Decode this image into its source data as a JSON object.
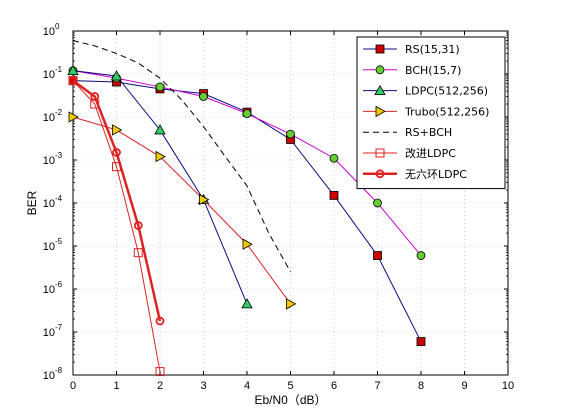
{
  "chart_data": {
    "type": "line",
    "xlabel": "Eb/N0（dB）",
    "ylabel": "BER",
    "xlim": [
      0,
      10
    ],
    "ylim_log10": [
      -8,
      0
    ],
    "yscale": "log",
    "grid": true,
    "legend_position": "top-right",
    "x_ticks": [
      "0",
      "1",
      "2",
      "3",
      "4",
      "5",
      "6",
      "7",
      "8",
      "9",
      "10"
    ],
    "y_ticks": [
      {
        "base": "10",
        "exp": "0"
      },
      {
        "base": "10",
        "exp": "-1"
      },
      {
        "base": "10",
        "exp": "-2"
      },
      {
        "base": "10",
        "exp": "-3"
      },
      {
        "base": "10",
        "exp": "-4"
      },
      {
        "base": "10",
        "exp": "-5"
      },
      {
        "base": "10",
        "exp": "-6"
      },
      {
        "base": "10",
        "exp": "-7"
      },
      {
        "base": "10",
        "exp": "-8"
      }
    ],
    "series": [
      {
        "name": "RS(15,31)",
        "color": "#0a0a80",
        "marker": "square",
        "marker_fill": "#cc0000",
        "dash": false,
        "width": 1,
        "x": [
          0,
          1,
          2,
          3,
          4,
          5,
          6,
          7,
          8
        ],
        "y": [
          0.07,
          0.065,
          0.045,
          0.035,
          0.013,
          0.003,
          0.00015,
          6e-06,
          6e-08
        ]
      },
      {
        "name": "BCH(15,7)",
        "color": "#cc00cc",
        "marker": "circle",
        "marker_fill": "#66cc33",
        "dash": false,
        "width": 1,
        "x": [
          0,
          1,
          2,
          3,
          4,
          5,
          6,
          7,
          8
        ],
        "y": [
          0.12,
          0.08,
          0.05,
          0.03,
          0.012,
          0.004,
          0.0011,
          0.0001,
          6e-06
        ]
      },
      {
        "name": "LDPC(512,256)",
        "color": "#0a0a80",
        "marker": "triangle-up",
        "marker_fill": "#33cc66",
        "dash": false,
        "width": 1,
        "x": [
          0,
          1,
          2,
          3,
          4
        ],
        "y": [
          0.12,
          0.09,
          0.005,
          0.00012,
          4.5e-07
        ]
      },
      {
        "name": "Trubo(512,256)",
        "color": "#dd2222",
        "marker": "triangle-right",
        "marker_fill": "#eecc00",
        "dash": false,
        "width": 1,
        "x": [
          0,
          1,
          2,
          3,
          4,
          5
        ],
        "y": [
          0.01,
          0.005,
          0.0012,
          0.00012,
          1.1e-05,
          4.5e-07
        ]
      },
      {
        "name": "RS+BCH",
        "color": "#000000",
        "marker": "none",
        "marker_fill": "none",
        "dash": true,
        "width": 1,
        "x": [
          0,
          0.5,
          1,
          1.5,
          2,
          2.5,
          3,
          3.5,
          4,
          4.5,
          5
        ],
        "y": [
          0.6,
          0.45,
          0.3,
          0.18,
          0.08,
          0.025,
          0.006,
          0.0012,
          0.00025,
          2e-05,
          2.5e-06
        ]
      },
      {
        "name": "改进LDPC",
        "color": "#dd2222",
        "marker": "square-open",
        "marker_fill": "none",
        "dash": false,
        "width": 1,
        "x": [
          0,
          0.5,
          1,
          1.5,
          2
        ],
        "y": [
          0.07,
          0.02,
          0.0007,
          7e-06,
          1.2e-08
        ]
      },
      {
        "name": "无六环LDPC",
        "color": "#dd2222",
        "marker": "circle-open",
        "marker_fill": "none",
        "dash": false,
        "width": 2.5,
        "x": [
          0,
          0.5,
          1,
          1.5,
          2
        ],
        "y": [
          0.07,
          0.03,
          0.0015,
          3e-05,
          1.8e-07
        ]
      }
    ]
  }
}
